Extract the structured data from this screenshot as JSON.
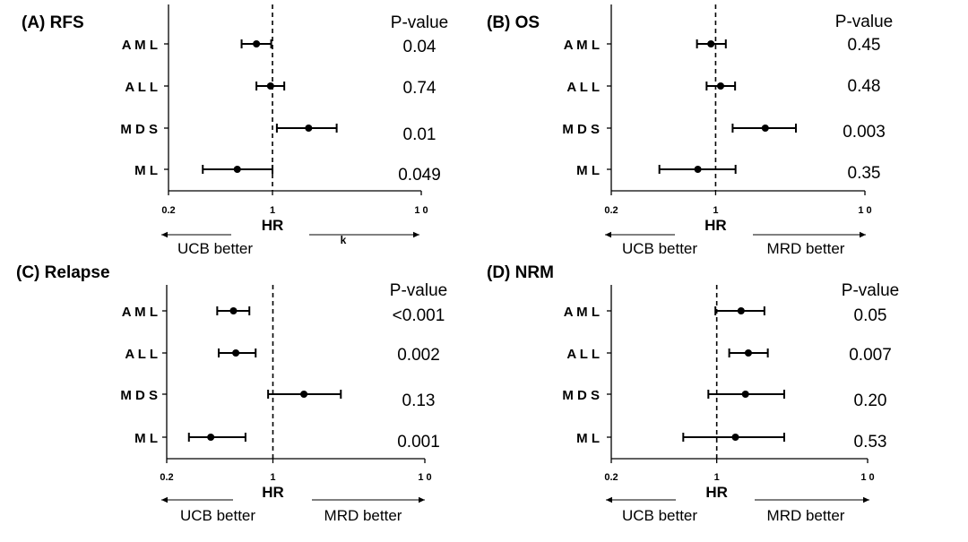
{
  "chart_data": [
    {
      "type": "forest",
      "title": "(A) RFS",
      "xlabel": "HR",
      "xscale": "log",
      "xlim": [
        0.2,
        10
      ],
      "reference_line": 1,
      "xticks": [
        0.2,
        1,
        10
      ],
      "xtick_labels": [
        "0.2",
        "1",
        "1 0"
      ],
      "pvalue_header": "P-value",
      "rows": [
        {
          "label": "A M L",
          "hr": 0.78,
          "ci": [
            0.62,
            0.98
          ],
          "p": "0.04"
        },
        {
          "label": "A L L",
          "hr": 0.97,
          "ci": [
            0.78,
            1.2
          ],
          "p": "0.74"
        },
        {
          "label": "M D S",
          "hr": 1.75,
          "ci": [
            1.07,
            2.7
          ],
          "p": "0.01"
        },
        {
          "label": "M L",
          "hr": 0.58,
          "ci": [
            0.34,
            1.0
          ],
          "p": "0.049"
        }
      ],
      "arrow_left": "UCB better",
      "arrow_right": "",
      "stray_mark": "k"
    },
    {
      "type": "forest",
      "title": "(B) OS",
      "xlabel": "HR",
      "xscale": "log",
      "xlim": [
        0.2,
        10
      ],
      "reference_line": 1,
      "xticks": [
        0.2,
        1,
        10
      ],
      "xtick_labels": [
        "0.2",
        "1",
        "1 0"
      ],
      "pvalue_header": "P-value",
      "rows": [
        {
          "label": "A M L",
          "hr": 0.93,
          "ci": [
            0.75,
            1.17
          ],
          "p": "0.45"
        },
        {
          "label": "A L L",
          "hr": 1.08,
          "ci": [
            0.87,
            1.35
          ],
          "p": "0.48"
        },
        {
          "label": "M D S",
          "hr": 2.15,
          "ci": [
            1.3,
            3.45
          ],
          "p": "0.003"
        },
        {
          "label": "M L",
          "hr": 0.76,
          "ci": [
            0.42,
            1.36
          ],
          "p": "0.35"
        }
      ],
      "arrow_left": "UCB better",
      "arrow_right": "MRD better"
    },
    {
      "type": "forest",
      "title": "(C) Relapse",
      "xlabel": "HR",
      "xscale": "log",
      "xlim": [
        0.2,
        10
      ],
      "reference_line": 1,
      "xticks": [
        0.2,
        1,
        10
      ],
      "xtick_labels": [
        "0.2",
        "1",
        "1 0"
      ],
      "pvalue_header": "P-value",
      "rows": [
        {
          "label": "A M L",
          "hr": 0.55,
          "ci": [
            0.43,
            0.7
          ],
          "p": "<0.001"
        },
        {
          "label": "A L L",
          "hr": 0.57,
          "ci": [
            0.44,
            0.77
          ],
          "p": "0.002"
        },
        {
          "label": "M D S",
          "hr": 1.6,
          "ci": [
            0.93,
            2.8
          ],
          "p": "0.13"
        },
        {
          "label": "M L",
          "hr": 0.39,
          "ci": [
            0.28,
            0.66
          ],
          "p": "0.001"
        }
      ],
      "arrow_left": "UCB better",
      "arrow_right": "MRD better"
    },
    {
      "type": "forest",
      "title": "(D) NRM",
      "xlabel": "HR",
      "xscale": "log",
      "xlim": [
        0.2,
        10
      ],
      "reference_line": 1,
      "xticks": [
        0.2,
        1,
        10
      ],
      "xtick_labels": [
        "0.2",
        "1",
        "1 0"
      ],
      "pvalue_header": "P-value",
      "rows": [
        {
          "label": "A M L",
          "hr": 1.45,
          "ci": [
            0.98,
            2.07
          ],
          "p": "0.05"
        },
        {
          "label": "A L L",
          "hr": 1.62,
          "ci": [
            1.21,
            2.18
          ],
          "p": "0.007"
        },
        {
          "label": "M D S",
          "hr": 1.55,
          "ci": [
            0.88,
            2.8
          ],
          "p": "0.20"
        },
        {
          "label": "M L",
          "hr": 1.33,
          "ci": [
            0.6,
            2.8
          ],
          "p": "0.53"
        }
      ],
      "arrow_left": "UCB better",
      "arrow_right": "MRD better"
    }
  ]
}
